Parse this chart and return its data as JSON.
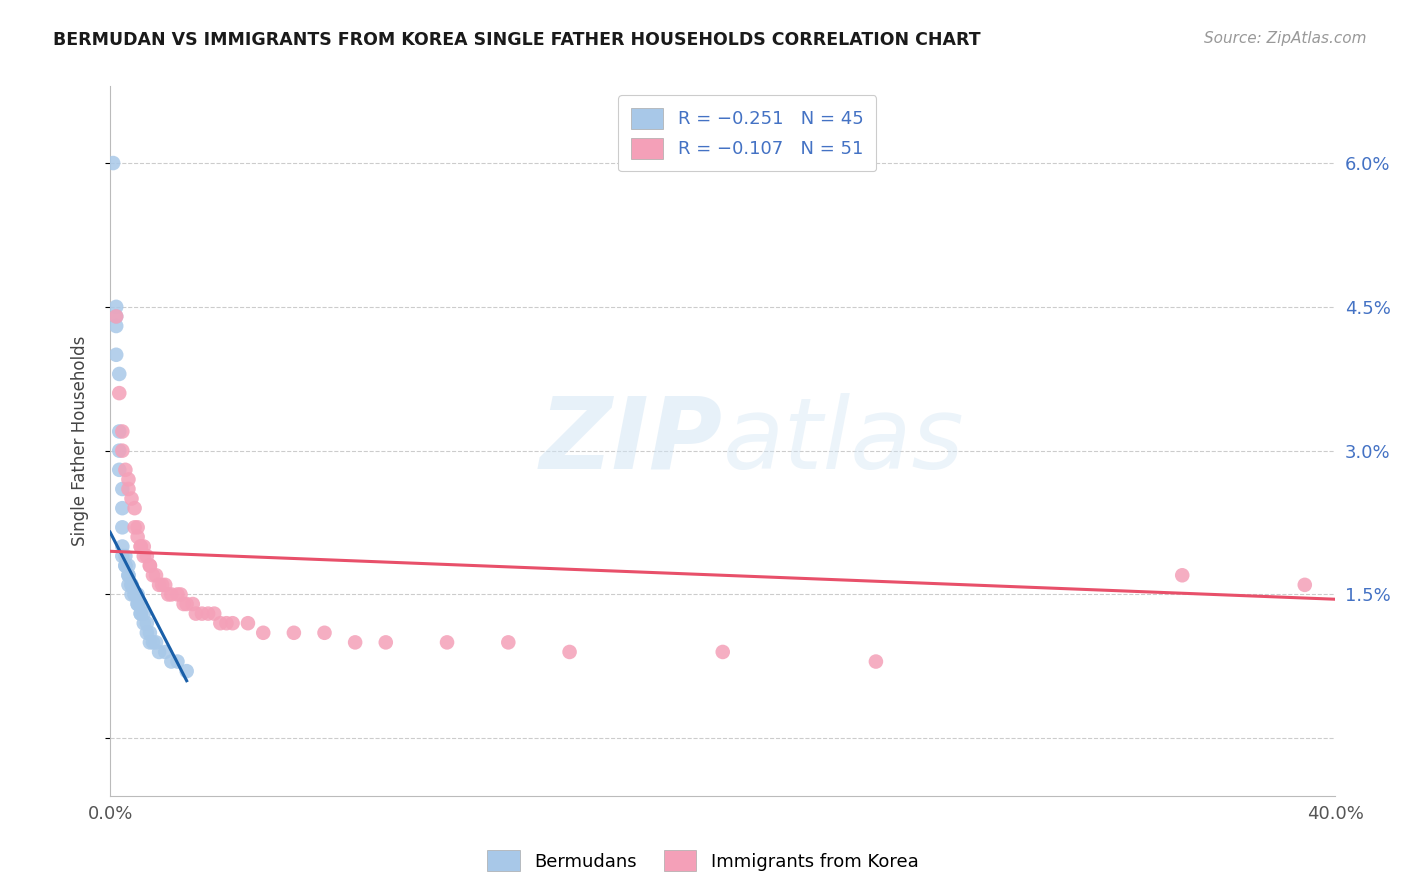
{
  "title": "BERMUDAN VS IMMIGRANTS FROM KOREA SINGLE FATHER HOUSEHOLDS CORRELATION CHART",
  "source": "Source: ZipAtlas.com",
  "ylabel": "Single Father Households",
  "y_ticks": [
    0.0,
    0.015,
    0.03,
    0.045,
    0.06
  ],
  "y_tick_labels": [
    "",
    "1.5%",
    "3.0%",
    "4.5%",
    "6.0%"
  ],
  "x_min": 0.0,
  "x_max": 0.4,
  "y_min": -0.006,
  "y_max": 0.068,
  "bermudans_color": "#a8c8e8",
  "korea_color": "#f4a0b8",
  "trendline_bermudans_color": "#1a5fa8",
  "trendline_korea_color": "#e8506a",
  "watermark_color": "#d0e4f4",
  "bermudans_x": [
    0.001,
    0.002,
    0.002,
    0.002,
    0.002,
    0.003,
    0.003,
    0.003,
    0.003,
    0.004,
    0.004,
    0.004,
    0.004,
    0.004,
    0.005,
    0.005,
    0.005,
    0.006,
    0.006,
    0.006,
    0.006,
    0.007,
    0.007,
    0.007,
    0.008,
    0.008,
    0.009,
    0.009,
    0.009,
    0.01,
    0.01,
    0.01,
    0.011,
    0.011,
    0.012,
    0.012,
    0.013,
    0.013,
    0.014,
    0.015,
    0.016,
    0.018,
    0.02,
    0.022,
    0.025
  ],
  "bermudans_y": [
    0.06,
    0.045,
    0.044,
    0.043,
    0.04,
    0.038,
    0.032,
    0.03,
    0.028,
    0.026,
    0.024,
    0.022,
    0.02,
    0.019,
    0.019,
    0.018,
    0.018,
    0.018,
    0.017,
    0.017,
    0.016,
    0.016,
    0.016,
    0.015,
    0.015,
    0.015,
    0.015,
    0.014,
    0.014,
    0.014,
    0.013,
    0.013,
    0.013,
    0.012,
    0.012,
    0.011,
    0.011,
    0.01,
    0.01,
    0.01,
    0.009,
    0.009,
    0.008,
    0.008,
    0.007
  ],
  "korea_x": [
    0.002,
    0.003,
    0.004,
    0.004,
    0.005,
    0.006,
    0.006,
    0.007,
    0.008,
    0.008,
    0.009,
    0.009,
    0.01,
    0.01,
    0.011,
    0.011,
    0.012,
    0.013,
    0.013,
    0.014,
    0.015,
    0.016,
    0.017,
    0.018,
    0.019,
    0.02,
    0.022,
    0.023,
    0.024,
    0.025,
    0.027,
    0.028,
    0.03,
    0.032,
    0.034,
    0.036,
    0.038,
    0.04,
    0.045,
    0.05,
    0.06,
    0.07,
    0.08,
    0.09,
    0.11,
    0.13,
    0.15,
    0.2,
    0.25,
    0.35,
    0.39
  ],
  "korea_y": [
    0.044,
    0.036,
    0.032,
    0.03,
    0.028,
    0.027,
    0.026,
    0.025,
    0.024,
    0.022,
    0.022,
    0.021,
    0.02,
    0.02,
    0.02,
    0.019,
    0.019,
    0.018,
    0.018,
    0.017,
    0.017,
    0.016,
    0.016,
    0.016,
    0.015,
    0.015,
    0.015,
    0.015,
    0.014,
    0.014,
    0.014,
    0.013,
    0.013,
    0.013,
    0.013,
    0.012,
    0.012,
    0.012,
    0.012,
    0.011,
    0.011,
    0.011,
    0.01,
    0.01,
    0.01,
    0.01,
    0.009,
    0.009,
    0.008,
    0.017,
    0.016
  ],
  "bermudan_trend_x": [
    0.0,
    0.025
  ],
  "bermudan_trend_y_intercept": 0.0215,
  "bermudan_trend_slope": -0.62,
  "korea_trend_x_start": 0.0,
  "korea_trend_x_end": 0.4,
  "korea_trend_y_start": 0.0195,
  "korea_trend_y_end": 0.0145
}
